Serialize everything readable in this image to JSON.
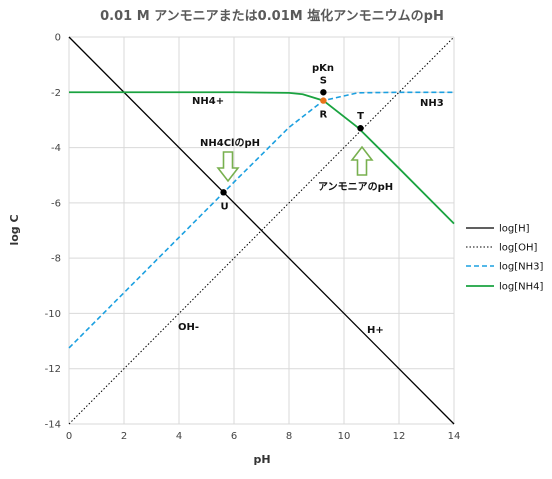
{
  "chart_data": {
    "type": "line",
    "title": "0.01 M アンモニアまたは0.01M 塩化アンモニウムのpH",
    "xlabel": "pH",
    "ylabel": "log C",
    "xlim": [
      0,
      14
    ],
    "ylim": [
      -14,
      0
    ],
    "x_ticks": [
      "0",
      "2",
      "4",
      "6",
      "8",
      "10",
      "12",
      "14"
    ],
    "y_ticks": [
      "0",
      "-2",
      "-4",
      "-6",
      "-8",
      "-10",
      "-12",
      "-14"
    ],
    "grid": true,
    "legend_position": "right",
    "pKn": 9.25,
    "log_total": -2,
    "series": [
      {
        "name": "log[H]",
        "color": "#000000",
        "style": "solid",
        "x": [
          0,
          14
        ],
        "y": [
          0,
          -14
        ]
      },
      {
        "name": "log[OH]",
        "color": "#000000",
        "style": "dotted",
        "x": [
          0,
          14
        ],
        "y": [
          -14,
          0
        ]
      },
      {
        "name": "log[NH3]",
        "color": "#1ca0e0",
        "style": "dashed",
        "x": [
          0,
          4,
          6,
          8,
          9.25,
          10.5,
          12,
          14
        ],
        "y": [
          -11.25,
          -7.25,
          -5.25,
          -3.27,
          -2.3,
          -2.02,
          -2.0,
          -2.0
        ]
      },
      {
        "name": "log[NH4]",
        "color": "#1aa340",
        "style": "solid",
        "x": [
          0,
          6,
          8,
          8.5,
          9.25,
          10.5,
          12,
          14
        ],
        "y": [
          -2.0,
          -2.0,
          -2.02,
          -2.07,
          -2.3,
          -3.27,
          -4.75,
          -6.75
        ]
      }
    ],
    "points": [
      {
        "label": "S",
        "x": 9.25,
        "y": -2.0,
        "color": "#000000"
      },
      {
        "label": "R",
        "x": 9.25,
        "y": -2.3,
        "color": "#e8731a"
      },
      {
        "label": "T",
        "x": 10.6,
        "y": -3.3,
        "color": "#000000"
      },
      {
        "label": "U",
        "x": 5.62,
        "y": -5.62,
        "color": "#000000"
      }
    ],
    "annotations": [
      {
        "key": "pKn",
        "text": "pKn"
      },
      {
        "key": "nh4plus",
        "text": "NH4+"
      },
      {
        "key": "nh3",
        "text": "NH3"
      },
      {
        "key": "nh4cl_ph",
        "text": "NH4ClのpH"
      },
      {
        "key": "ammonia_ph",
        "text": "アンモニアのpH"
      },
      {
        "key": "ohminus",
        "text": "OH-"
      },
      {
        "key": "hplus",
        "text": "H+"
      }
    ],
    "arrow_color": "#78b04f"
  }
}
